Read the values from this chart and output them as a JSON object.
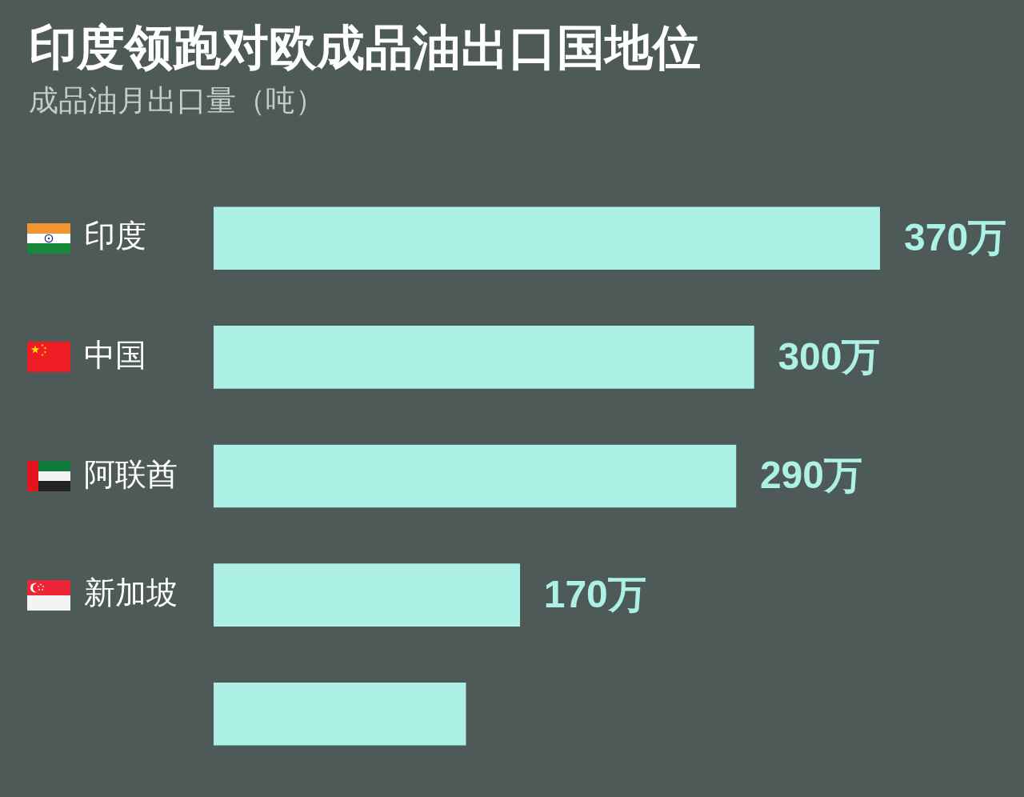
{
  "chart_data": {
    "type": "bar",
    "orientation": "horizontal",
    "title": "印度领跑对欧成品油出口国地位",
    "subtitle": "成品油月出口量（吨）",
    "categories": [
      "印度",
      "中国",
      "阿联酋",
      "新加坡",
      null
    ],
    "values": [
      370,
      300,
      290,
      170,
      140
    ],
    "value_labels": [
      "370万",
      "300万",
      "290万",
      "170万",
      null
    ],
    "color": "#adf0e6",
    "tick_labels": "y"
  }
}
